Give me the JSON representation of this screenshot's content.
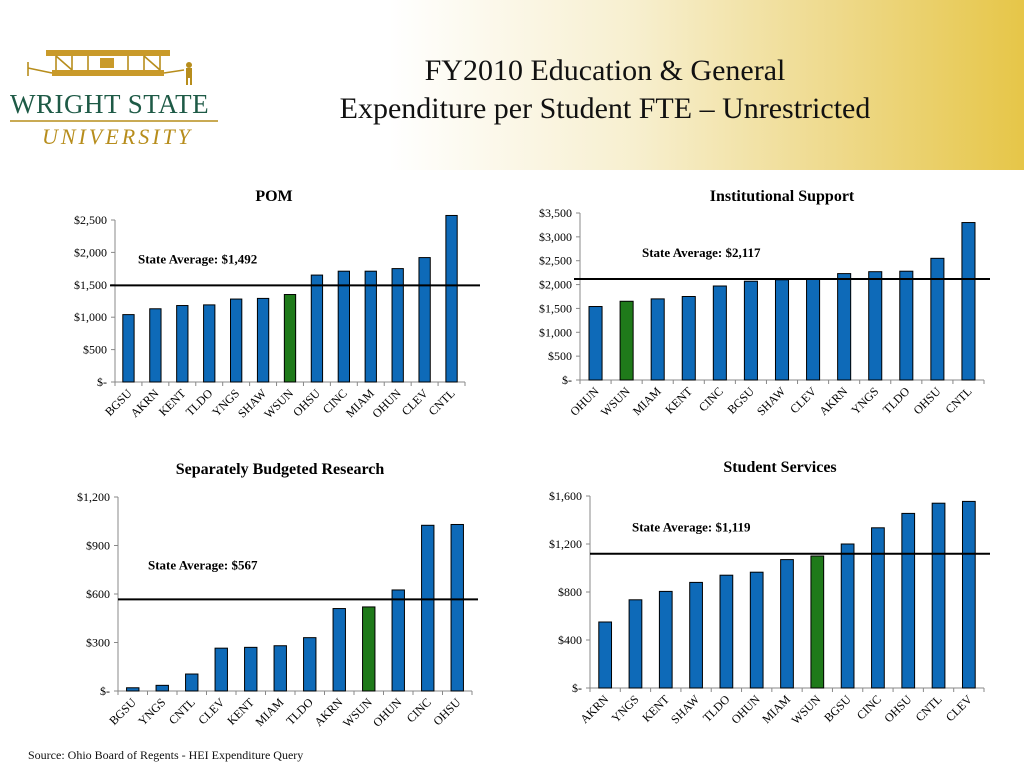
{
  "header": {
    "title_line1": "FY2010 Education & General",
    "title_line2": "Expenditure per Student FTE – Unrestricted"
  },
  "logo": {
    "line1": "WRIGHT STATE",
    "line2": "UNIVERSITY"
  },
  "footer": {
    "source": "Source:  Ohio Board of Regents - HEI Expenditure Query"
  },
  "colors": {
    "bar_blue": "#0e6ab8",
    "bar_highlight": "#1f7a1a",
    "bar_stroke": "#000000",
    "accent_gold": "#b78d1c",
    "logo_green": "#1e5a46"
  },
  "chart_data": [
    {
      "type": "bar",
      "title": "POM",
      "categories": [
        "BGSU",
        "AKRN",
        "KENT",
        "TLDO",
        "YNGS",
        "SHAW",
        "WSUN",
        "OHSU",
        "CINC",
        "MIAM",
        "OHUN",
        "CLEV",
        "CNTL"
      ],
      "values": [
        1040,
        1130,
        1180,
        1190,
        1280,
        1290,
        1350,
        1650,
        1710,
        1710,
        1750,
        1920,
        2570
      ],
      "highlight": "WSUN",
      "ylim": [
        0,
        2500
      ],
      "yticks": [
        "$-",
        "$500",
        "$1,000",
        "$1,500",
        "$2,000",
        "$2,500"
      ],
      "reference_line": {
        "value": 1492,
        "label": "State Average: $1,492"
      }
    },
    {
      "type": "bar",
      "title": "Institutional Support",
      "categories": [
        "OHUN",
        "WSUN",
        "MIAM",
        "KENT",
        "CINC",
        "BGSU",
        "SHAW",
        "CLEV",
        "AKRN",
        "YNGS",
        "TLDO",
        "OHSU",
        "CNTL"
      ],
      "values": [
        1540,
        1650,
        1700,
        1750,
        1970,
        2070,
        2100,
        2120,
        2230,
        2270,
        2280,
        2550,
        3300
      ],
      "highlight": "WSUN",
      "ylim": [
        0,
        3500
      ],
      "yticks": [
        "$-",
        "$500",
        "$1,000",
        "$1,500",
        "$2,000",
        "$2,500",
        "$3,000",
        "$3,500"
      ],
      "reference_line": {
        "value": 2117,
        "label": "State Average: $2,117"
      }
    },
    {
      "type": "bar",
      "title": "Separately Budgeted Research",
      "categories": [
        "BGSU",
        "YNGS",
        "CNTL",
        "CLEV",
        "KENT",
        "MIAM",
        "TLDO",
        "AKRN",
        "WSUN",
        "OHUN",
        "CINC",
        "OHSU"
      ],
      "values": [
        20,
        35,
        105,
        265,
        270,
        280,
        330,
        510,
        520,
        625,
        1025,
        1030
      ],
      "highlight": "WSUN",
      "ylim": [
        0,
        1200
      ],
      "yticks": [
        "$-",
        "$300",
        "$600",
        "$900",
        "$1,200"
      ],
      "reference_line": {
        "value": 567,
        "label": "State Average: $567"
      }
    },
    {
      "type": "bar",
      "title": "Student Services",
      "categories": [
        "AKRN",
        "YNGS",
        "KENT",
        "SHAW",
        "TLDO",
        "OHUN",
        "MIAM",
        "WSUN",
        "BGSU",
        "CINC",
        "OHSU",
        "CNTL",
        "CLEV"
      ],
      "values": [
        550,
        735,
        805,
        880,
        940,
        965,
        1070,
        1100,
        1200,
        1335,
        1455,
        1540,
        1555
      ],
      "highlight": "WSUN",
      "ylim": [
        0,
        1600
      ],
      "yticks": [
        "$-",
        "$400",
        "$800",
        "$1,200",
        "$1,600"
      ],
      "reference_line": {
        "value": 1119,
        "label": "State Average: $1,119"
      }
    }
  ]
}
